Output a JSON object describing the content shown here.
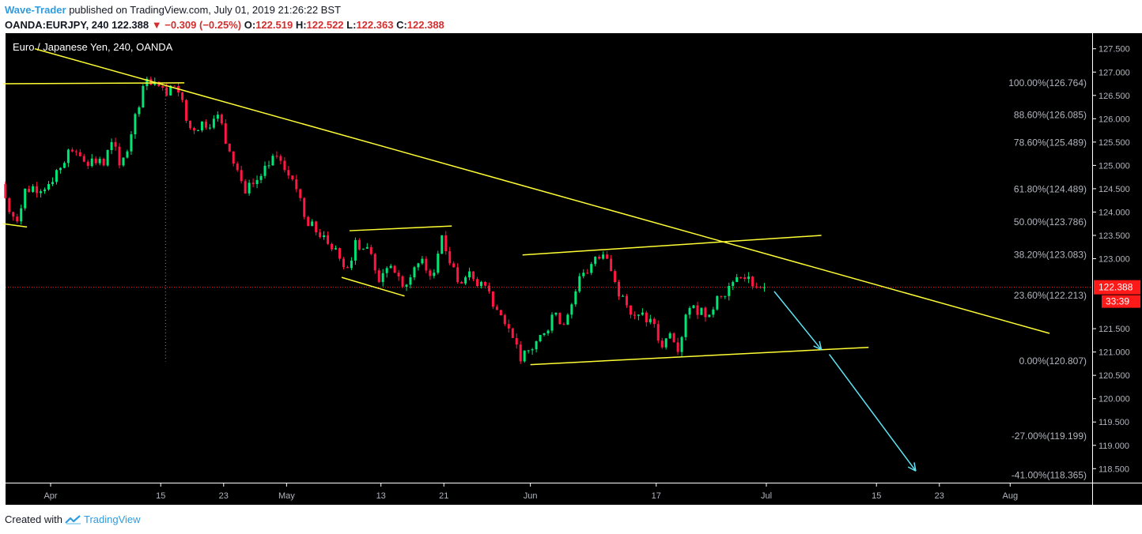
{
  "header": {
    "author": "Wave-Trader",
    "published": "published on TradingView.com, July 01, 2019 21:26:22 BST",
    "symbol": "OANDA:EURJPY, 240",
    "last": "122.388",
    "change": "−0.309 (−0.25%)",
    "o_label": "O:",
    "o": "122.519",
    "h_label": "H:",
    "h": "122.522",
    "l_label": "L:",
    "l": "122.363",
    "c_label": "C:",
    "c": "122.388"
  },
  "footer": {
    "created": "Created with",
    "brand": "TradingView"
  },
  "chart_data": {
    "type": "candlestick",
    "title": "Euro / Japanese Yen, 240, OANDA",
    "ylim": [
      118.2,
      127.8
    ],
    "y_ticks": [
      "127.500",
      "127.000",
      "126.500",
      "126.000",
      "125.500",
      "125.000",
      "124.500",
      "124.000",
      "123.500",
      "123.000",
      "121.500",
      "121.000",
      "120.500",
      "120.000",
      "119.500",
      "119.000",
      "118.500"
    ],
    "x_ticks": [
      "Apr",
      "15",
      "23",
      "May",
      "13",
      "21",
      "Jun",
      "17",
      "Jul",
      "15",
      "23",
      "Aug"
    ],
    "last_price": {
      "price": "122.388",
      "countdown": "33:39"
    },
    "fib_levels": [
      {
        "label": "100.00%(126.764)",
        "price": 126.764
      },
      {
        "label": "88.60%(126.085)",
        "price": 126.085
      },
      {
        "label": "78.60%(125.489)",
        "price": 125.489
      },
      {
        "label": "61.80%(124.489)",
        "price": 124.489
      },
      {
        "label": "50.00%(123.786)",
        "price": 123.786
      },
      {
        "label": "38.20%(123.083)",
        "price": 123.083
      },
      {
        "label": "23.60%(122.213)",
        "price": 122.213
      },
      {
        "label": "0.00%(120.807)",
        "price": 120.807
      },
      {
        "label": "-27.00%(119.199)",
        "price": 119.199
      },
      {
        "label": "-41.00%(118.365)",
        "price": 118.365
      }
    ],
    "price_path": [
      [
        "Mar 26",
        124.6
      ],
      [
        "Mar 27",
        124.0
      ],
      [
        "Mar 28",
        123.8
      ],
      [
        "Mar 29",
        124.5
      ],
      [
        "Apr 1",
        124.6
      ],
      [
        "Apr 2",
        124.9
      ],
      [
        "Apr 4",
        125.3
      ],
      [
        "Apr 5",
        125.2
      ],
      [
        "Apr 8",
        125.0
      ],
      [
        "Apr 9",
        125.5
      ],
      [
        "Apr 10",
        125.0
      ],
      [
        "Apr 11",
        125.3
      ],
      [
        "Apr 12",
        126.1
      ],
      [
        "Apr 13",
        126.7
      ],
      [
        "Apr 15",
        126.7
      ],
      [
        "Apr 16",
        126.5
      ],
      [
        "Apr 17",
        126.7
      ],
      [
        "Apr 18",
        126.4
      ],
      [
        "Apr 19",
        125.8
      ],
      [
        "Apr 22",
        126.0
      ],
      [
        "Apr 23",
        125.9
      ],
      [
        "Apr 24",
        125.3
      ],
      [
        "Apr 25",
        124.9
      ],
      [
        "Apr 26",
        124.4
      ],
      [
        "Apr 27",
        124.6
      ],
      [
        "Apr 29",
        125.0
      ],
      [
        "Apr 30",
        125.2
      ],
      [
        "May 1",
        124.9
      ],
      [
        "May 2",
        124.7
      ],
      [
        "May 3",
        124.3
      ],
      [
        "May 4",
        123.7
      ],
      [
        "May 6",
        123.5
      ],
      [
        "May 7",
        123.2
      ],
      [
        "May 8",
        123.0
      ],
      [
        "May 9",
        122.8
      ],
      [
        "May 10",
        123.4
      ],
      [
        "May 12",
        123.1
      ],
      [
        "May 13",
        122.5
      ],
      [
        "May 14",
        122.8
      ],
      [
        "May 15",
        122.7
      ],
      [
        "May 16",
        122.4
      ],
      [
        "May 17",
        122.6
      ],
      [
        "May 18",
        122.9
      ],
      [
        "May 20",
        122.7
      ],
      [
        "May 21",
        123.5
      ],
      [
        "May 22",
        122.9
      ],
      [
        "May 23",
        122.5
      ],
      [
        "May 24",
        122.6
      ],
      [
        "May 26",
        122.5
      ],
      [
        "May 27",
        122.3
      ],
      [
        "May 28",
        121.9
      ],
      [
        "May 29",
        121.6
      ],
      [
        "May 30",
        121.3
      ],
      [
        "May 31",
        120.8
      ],
      [
        "Jun 3",
        121.4
      ],
      [
        "Jun 4",
        121.8
      ],
      [
        "Jun 5",
        121.6
      ],
      [
        "Jun 6",
        121.8
      ],
      [
        "Jun 7",
        122.3
      ],
      [
        "Jun 8",
        122.7
      ],
      [
        "Jun 10",
        123.0
      ],
      [
        "Jun 11",
        123.0
      ],
      [
        "Jun 12",
        122.5
      ],
      [
        "Jun 13",
        122.2
      ],
      [
        "Jun 14",
        121.8
      ],
      [
        "Jun 15",
        121.8
      ],
      [
        "Jun 17",
        121.6
      ],
      [
        "Jun 18",
        121.1
      ],
      [
        "Jun 19",
        121.4
      ],
      [
        "Jun 20",
        121.0
      ],
      [
        "Jun 21",
        121.8
      ],
      [
        "Jun 22",
        122.0
      ],
      [
        "Jun 24",
        121.8
      ],
      [
        "Jun 25",
        122.2
      ],
      [
        "Jun 26",
        122.2
      ],
      [
        "Jun 27",
        122.5
      ],
      [
        "Jun 28",
        122.6
      ],
      [
        "Jul 1",
        122.388
      ]
    ],
    "drawings": [
      {
        "type": "trendline",
        "from": [
          "Mar 26",
          126.75
        ],
        "to": [
          "Apr 18",
          126.77
        ]
      },
      {
        "type": "trendline",
        "from": [
          "Mar 26",
          123.75
        ],
        "to": [
          "Mar 29",
          123.68
        ]
      },
      {
        "type": "trendline",
        "from": [
          "Mar 30",
          127.5
        ],
        "to": [
          "Aug 6",
          121.4
        ]
      },
      {
        "type": "trendline",
        "from": [
          "May 9",
          123.6
        ],
        "to": [
          "May 22",
          123.7
        ]
      },
      {
        "type": "trendline",
        "from": [
          "May 8",
          122.6
        ],
        "to": [
          "May 16",
          122.2
        ]
      },
      {
        "type": "trendline",
        "from": [
          "Jun 1",
          120.73
        ],
        "to": [
          "Jul 14",
          121.1
        ]
      },
      {
        "type": "trendline",
        "from": [
          "May 31",
          123.08
        ],
        "to": [
          "Jul 8",
          123.5
        ]
      },
      {
        "type": "arrow",
        "from": [
          "Jul 2",
          122.3
        ],
        "to": [
          "Jul 8",
          121.05
        ]
      },
      {
        "type": "arrow",
        "from": [
          "Jul 9",
          120.95
        ],
        "to": [
          "Jul 20",
          118.45
        ]
      }
    ],
    "colors": {
      "background": "#000000",
      "bull": "#00e676",
      "bear": "#ff1744",
      "trendline": "#ffff33",
      "arrow": "#5ee4f5",
      "last_price": "#ff1a1a",
      "axis_text": "#b2b5be"
    }
  }
}
